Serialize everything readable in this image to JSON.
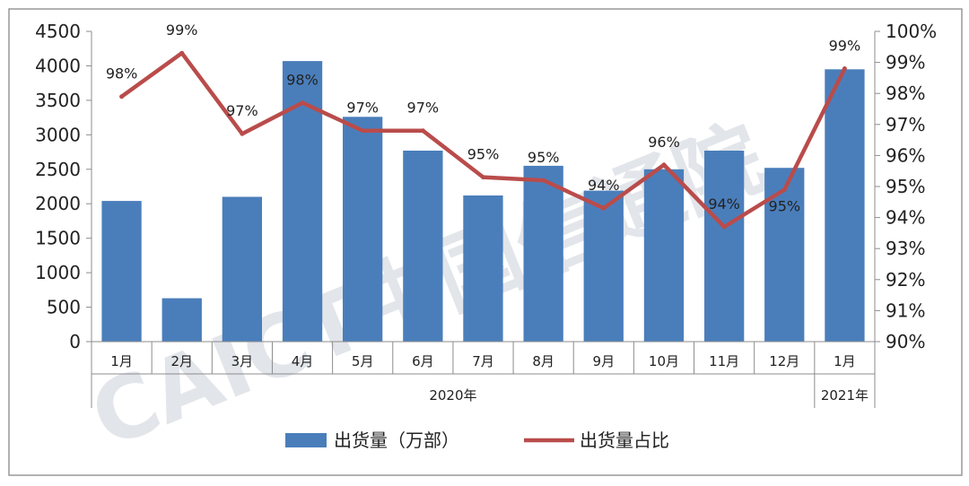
{
  "chart_data": {
    "type": "bar+line",
    "categories": [
      "1月",
      "2月",
      "3月",
      "4月",
      "5月",
      "6月",
      "7月",
      "8月",
      "9月",
      "10月",
      "11月",
      "12月",
      "1月"
    ],
    "category_groups": [
      {
        "label": "2020年",
        "from": 0,
        "to": 11
      },
      {
        "label": "2021年",
        "from": 12,
        "to": 12
      }
    ],
    "series": [
      {
        "name": "出货量（万部）",
        "type": "bar",
        "axis": "left",
        "color": "#4a7ebb",
        "values": [
          2040,
          630,
          2100,
          4070,
          3260,
          2770,
          2120,
          2550,
          2190,
          2500,
          2770,
          2520,
          3950
        ]
      },
      {
        "name": "出货量占比",
        "type": "line",
        "axis": "right",
        "color": "#b94c4b",
        "values": [
          97.9,
          99.3,
          96.7,
          97.7,
          96.8,
          96.8,
          95.3,
          95.2,
          94.3,
          95.7,
          93.7,
          94.9,
          98.8
        ],
        "labels": [
          "98%",
          "99%",
          "97%",
          "98%",
          "97%",
          "97%",
          "95%",
          "95%",
          "94%",
          "96%",
          "94%",
          "95%",
          "99%"
        ]
      }
    ],
    "y_left": {
      "min": 0,
      "max": 4500,
      "ticks": [
        "0",
        "500",
        "1000",
        "1500",
        "2000",
        "2500",
        "3000",
        "3500",
        "4000",
        "4500"
      ]
    },
    "y_right": {
      "min": 90,
      "max": 100,
      "ticks": [
        "90%",
        "91%",
        "92%",
        "93%",
        "94%",
        "95%",
        "96%",
        "97%",
        "98%",
        "99%",
        "100%"
      ]
    },
    "legend_position": "bottom",
    "grid": false
  },
  "watermark": {
    "text": "CAICT中国信通院"
  }
}
